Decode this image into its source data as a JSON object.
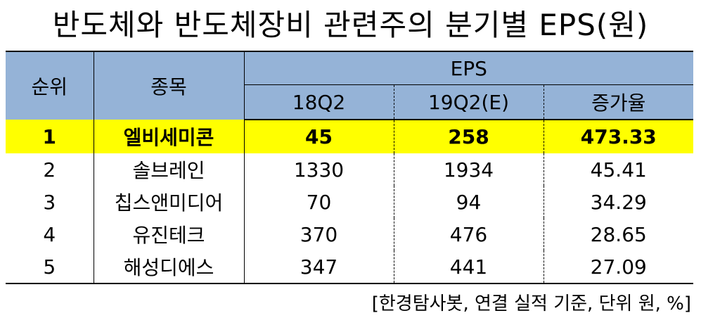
{
  "title": "반도체와 반도체장비 관련주의 분기별 EPS(원)",
  "table": {
    "headers": {
      "rank": "순위",
      "name": "종목",
      "eps_group": "EPS",
      "q1": "18Q2",
      "q2": "19Q2(E)",
      "rate": "증가율"
    },
    "rows": [
      {
        "rank": "1",
        "name": "엘비세미콘",
        "q1": "45",
        "q2": "258",
        "rate": "473.33",
        "highlight": true
      },
      {
        "rank": "2",
        "name": "솔브레인",
        "q1": "1330",
        "q2": "1934",
        "rate": "45.41"
      },
      {
        "rank": "3",
        "name": "칩스앤미디어",
        "q1": "70",
        "q2": "94",
        "rate": "34.29"
      },
      {
        "rank": "4",
        "name": "유진테크",
        "q1": "370",
        "q2": "476",
        "rate": "28.65"
      },
      {
        "rank": "5",
        "name": "해성디에스",
        "q1": "347",
        "q2": "441",
        "rate": "27.09"
      }
    ]
  },
  "source_note": "[한경탐사봇, 연결 실적 기준, 단위 원, %]",
  "colors": {
    "header_bg": "#95b3d7",
    "highlight_bg": "#ffff00"
  }
}
